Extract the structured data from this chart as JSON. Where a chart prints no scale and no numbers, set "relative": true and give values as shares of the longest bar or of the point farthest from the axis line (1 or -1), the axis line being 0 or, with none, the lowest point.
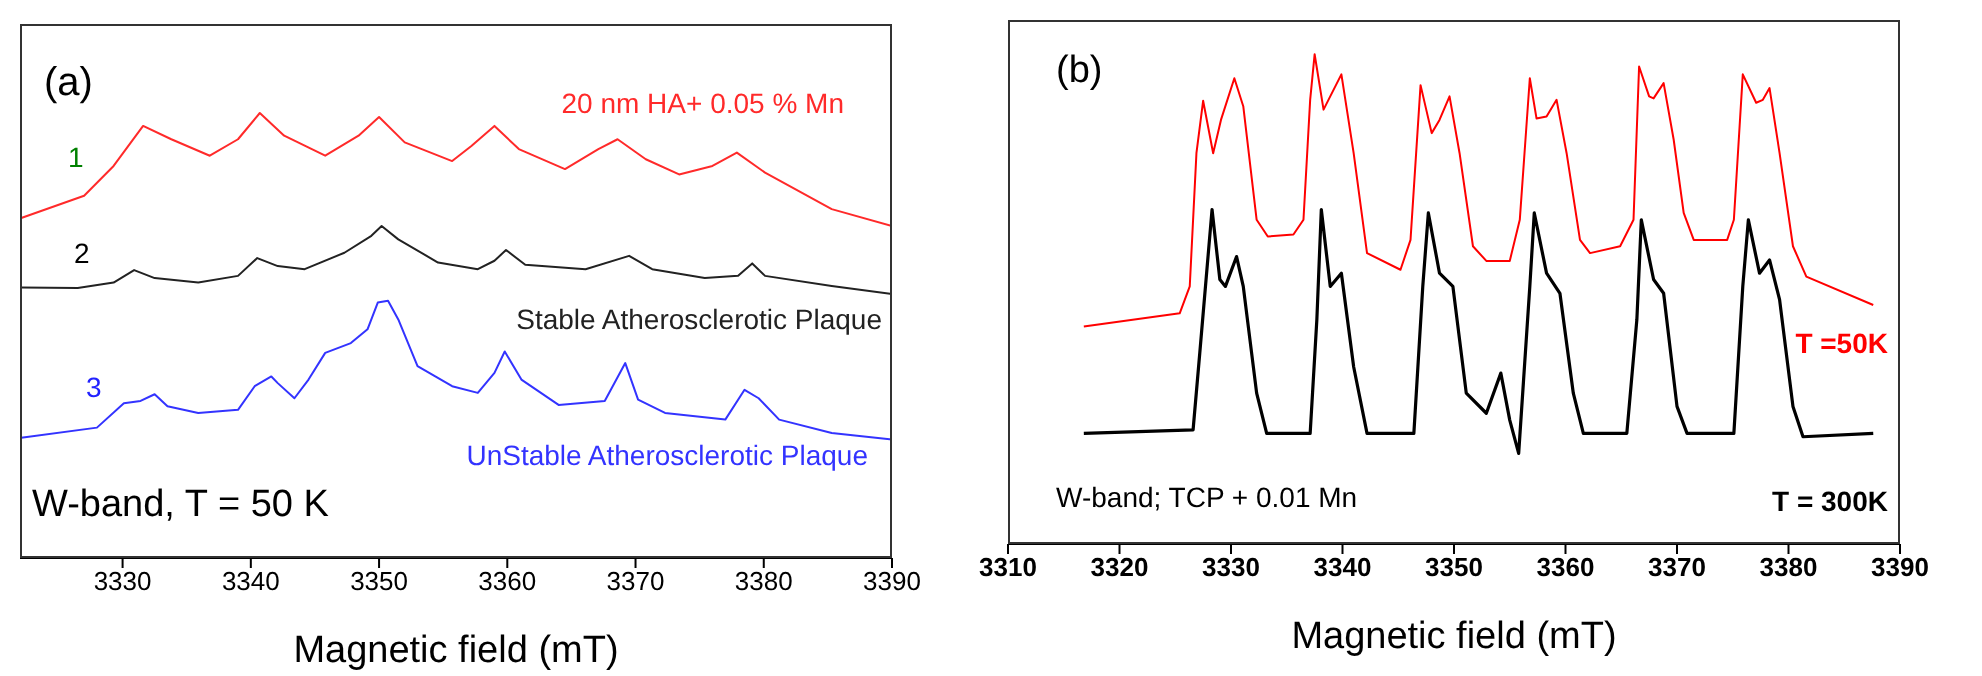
{
  "chart_data": [
    {
      "type": "line",
      "relative": true,
      "xlabel": "Magnetic field (mT)",
      "xlim": [
        3322,
        3390
      ],
      "xticks": [
        3330,
        3340,
        3350,
        3360,
        3370,
        3380,
        3390
      ],
      "annotations": [
        "(a)",
        "1",
        "2",
        "3",
        "W-band, T = 50 K"
      ],
      "series": [
        {
          "name": "20 nm HA+ 0.05 % Mn",
          "color": "#ff2a2a",
          "x": [
            3322.1,
            3327.0,
            3329.3,
            3331.6,
            3333.8,
            3336.8,
            3339.0,
            3340.7,
            3342.6,
            3345.8,
            3348.4,
            3350.0,
            3352.0,
            3355.7,
            3357.2,
            3359.0,
            3360.9,
            3364.5,
            3367.1,
            3368.6,
            3370.8,
            3373.4,
            3376.0,
            3377.9,
            3380.1,
            3385.3,
            3390.0
          ],
          "values": [
            0.764,
            0.814,
            0.881,
            0.971,
            0.941,
            0.904,
            0.941,
            1,
            0.949,
            0.904,
            0.949,
            0.991,
            0.934,
            0.892,
            0.926,
            0.971,
            0.919,
            0.874,
            0.919,
            0.941,
            0.896,
            0.862,
            0.881,
            0.911,
            0.866,
            0.784,
            0.746
          ]
        },
        {
          "name": "Stable Atherosclerotic Plaque",
          "color": "#222222",
          "x": [
            3322.1,
            3326.5,
            3329.3,
            3330.9,
            3332.5,
            3335.9,
            3339.0,
            3340.5,
            3342.1,
            3344.2,
            3347.3,
            3349.4,
            3350.2,
            3351.5,
            3354.6,
            3357.7,
            3359.0,
            3359.9,
            3361.4,
            3366.1,
            3369.5,
            3371.3,
            3375.4,
            3378.0,
            3379.1,
            3380.1,
            3385.3,
            3390.0
          ],
          "values": [
            0.608,
            0.607,
            0.619,
            0.647,
            0.629,
            0.619,
            0.634,
            0.674,
            0.656,
            0.649,
            0.686,
            0.724,
            0.746,
            0.716,
            0.664,
            0.649,
            0.668,
            0.692,
            0.659,
            0.649,
            0.679,
            0.649,
            0.629,
            0.634,
            0.662,
            0.634,
            0.611,
            0.593
          ]
        },
        {
          "name": "UnStable Atherosclerotic Plaque",
          "color": "#3333ff",
          "x": [
            3322.1,
            3328.0,
            3330.1,
            3331.4,
            3332.5,
            3333.5,
            3335.9,
            3339.0,
            3340.3,
            3341.6,
            3342.1,
            3343.4,
            3344.5,
            3345.8,
            3347.8,
            3349.1,
            3349.9,
            3350.7,
            3351.5,
            3353.0,
            3355.7,
            3357.7,
            3359.0,
            3359.8,
            3361.1,
            3364.0,
            3367.6,
            3369.2,
            3370.2,
            3372.3,
            3377.0,
            3378.5,
            3379.6,
            3381.2,
            3385.3,
            3390.0
          ],
          "values": [
            0.27,
            0.293,
            0.348,
            0.353,
            0.368,
            0.341,
            0.326,
            0.333,
            0.386,
            0.408,
            0.393,
            0.359,
            0.401,
            0.461,
            0.483,
            0.514,
            0.574,
            0.578,
            0.536,
            0.431,
            0.386,
            0.371,
            0.416,
            0.464,
            0.401,
            0.344,
            0.353,
            0.438,
            0.356,
            0.326,
            0.311,
            0.378,
            0.359,
            0.311,
            0.281,
            0.266
          ]
        }
      ]
    },
    {
      "type": "line",
      "relative": true,
      "xlabel": "Magnetic field (mT)",
      "xlim": [
        3310,
        3390
      ],
      "xticks": [
        3310,
        3320,
        3330,
        3340,
        3350,
        3360,
        3370,
        3380,
        3390
      ],
      "annotations": [
        "(b)",
        "W-band; TCP + 0.01 Mn"
      ],
      "series": [
        {
          "name": "T =50K",
          "color": "#ff0000",
          "x": [
            3316.8,
            3325.4,
            3326.3,
            3326.9,
            3327.5,
            3328.4,
            3329.1,
            3330.3,
            3331.1,
            3332.3,
            3333.3,
            3335.6,
            3336.5,
            3337.1,
            3337.5,
            3338.3,
            3338.9,
            3339.9,
            3341.0,
            3342.2,
            3345.2,
            3346.1,
            3347.0,
            3348.0,
            3348.7,
            3349.6,
            3350.5,
            3351.7,
            3352.9,
            3355.0,
            3355.9,
            3356.8,
            3357.4,
            3358.3,
            3359.2,
            3360.1,
            3361.3,
            3362.2,
            3364.9,
            3366.1,
            3366.6,
            3367.5,
            3367.9,
            3368.8,
            3369.7,
            3370.6,
            3371.5,
            3374.5,
            3375.1,
            3375.9,
            3377.1,
            3377.7,
            3378.3,
            3379.2,
            3380.4,
            3381.6,
            3387.6
          ],
          "values": [
            0.444,
            0.471,
            0.526,
            0.798,
            0.905,
            0.798,
            0.866,
            0.951,
            0.894,
            0.662,
            0.628,
            0.632,
            0.662,
            0.907,
            1,
            0.887,
            0.914,
            0.959,
            0.798,
            0.594,
            0.56,
            0.621,
            0.937,
            0.839,
            0.866,
            0.914,
            0.798,
            0.608,
            0.578,
            0.578,
            0.662,
            0.951,
            0.869,
            0.873,
            0.907,
            0.798,
            0.621,
            0.594,
            0.608,
            0.662,
            0.975,
            0.914,
            0.91,
            0.941,
            0.826,
            0.676,
            0.621,
            0.621,
            0.662,
            0.959,
            0.901,
            0.907,
            0.931,
            0.798,
            0.608,
            0.546,
            0.488
          ]
        },
        {
          "name": "T = 300K",
          "color": "#000000",
          "x": [
            3316.8,
            3326.6,
            3327.2,
            3328.3,
            3329.0,
            3329.5,
            3330.5,
            3331.1,
            3332.3,
            3333.2,
            3337.1,
            3337.7,
            3338.1,
            3338.9,
            3339.9,
            3341.0,
            3342.2,
            3346.4,
            3347.2,
            3347.7,
            3348.7,
            3349.9,
            3351.1,
            3352.9,
            3354.2,
            3355.0,
            3355.8,
            3356.8,
            3357.2,
            3358.3,
            3359.5,
            3360.7,
            3361.6,
            3365.5,
            3366.4,
            3366.8,
            3367.9,
            3368.8,
            3370.0,
            3370.9,
            3375.1,
            3375.9,
            3376.4,
            3377.4,
            3378.3,
            3379.2,
            3380.4,
            3381.3,
            3387.6
          ],
          "values": [
            0.226,
            0.233,
            0.39,
            0.683,
            0.54,
            0.526,
            0.587,
            0.526,
            0.308,
            0.226,
            0.226,
            0.458,
            0.683,
            0.526,
            0.553,
            0.362,
            0.226,
            0.226,
            0.526,
            0.676,
            0.553,
            0.526,
            0.308,
            0.267,
            0.349,
            0.253,
            0.185,
            0.526,
            0.676,
            0.553,
            0.512,
            0.308,
            0.226,
            0.226,
            0.458,
            0.662,
            0.54,
            0.512,
            0.281,
            0.226,
            0.226,
            0.526,
            0.662,
            0.553,
            0.58,
            0.499,
            0.281,
            0.219,
            0.226
          ]
        }
      ]
    }
  ]
}
